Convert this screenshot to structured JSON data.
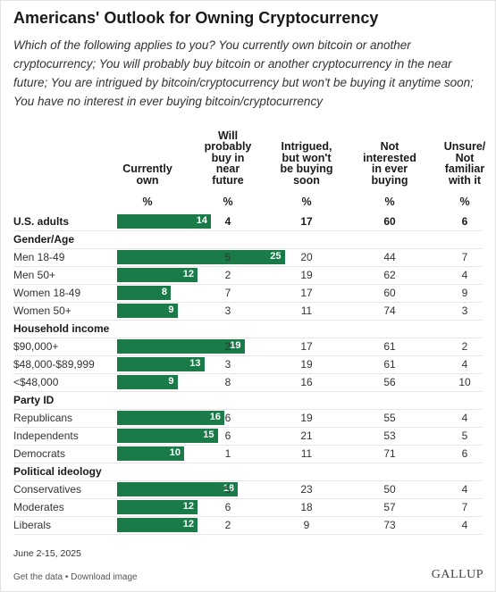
{
  "header": {
    "title": "Americans' Outlook for Owning Cryptocurrency",
    "subtitle": "Which of the following applies to you? You currently own bitcoin or another cryptocurrency; You will probably buy bitcoin or another cryptocurrency in the near future; You are intrigued by bitcoin/cryptocurrency but won't be buying it anytime soon; You have no interest in ever buying bitcoin/cryptocurrency"
  },
  "columns": [
    {
      "label": "Currently\nown",
      "unit": "%"
    },
    {
      "label": "Will\nprobably\nbuy in\nnear\nfuture",
      "unit": "%"
    },
    {
      "label": "Intrigued,\nbut won't\nbe buying\nsoon",
      "unit": "%"
    },
    {
      "label": "Not\ninterested\nin ever\nbuying",
      "unit": "%"
    },
    {
      "label": "Unsure/\nNot\nfamiliar\nwith it",
      "unit": "%"
    }
  ],
  "bar_color": "#1a7a48",
  "chart_data": {
    "type": "table",
    "rows": [
      {
        "kind": "total",
        "label": "U.S. adults",
        "values": [
          14,
          4,
          17,
          60,
          6
        ]
      },
      {
        "kind": "group",
        "label": "Gender/Age"
      },
      {
        "kind": "row",
        "label": "Men 18-49",
        "values": [
          25,
          5,
          20,
          44,
          7
        ]
      },
      {
        "kind": "row",
        "label": "Men 50+",
        "values": [
          12,
          2,
          19,
          62,
          4
        ]
      },
      {
        "kind": "row",
        "label": "Women 18-49",
        "values": [
          8,
          7,
          17,
          60,
          9
        ]
      },
      {
        "kind": "row",
        "label": "Women 50+",
        "values": [
          9,
          3,
          11,
          74,
          3
        ]
      },
      {
        "kind": "group",
        "label": "Household income"
      },
      {
        "kind": "row",
        "label": "$90,000+",
        "values": [
          19,
          2,
          17,
          61,
          2
        ]
      },
      {
        "kind": "row",
        "label": "$48,000-$89,999",
        "values": [
          13,
          3,
          19,
          61,
          4
        ]
      },
      {
        "kind": "row",
        "label": "<$48,000",
        "values": [
          9,
          8,
          16,
          56,
          10
        ]
      },
      {
        "kind": "group",
        "label": "Party ID"
      },
      {
        "kind": "row",
        "label": "Republicans",
        "values": [
          16,
          6,
          19,
          55,
          4
        ]
      },
      {
        "kind": "row",
        "label": "Independents",
        "values": [
          15,
          6,
          21,
          53,
          5
        ]
      },
      {
        "kind": "row",
        "label": "Democrats",
        "values": [
          10,
          1,
          11,
          71,
          6
        ]
      },
      {
        "kind": "group",
        "label": "Political ideology"
      },
      {
        "kind": "row",
        "label": "Conservatives",
        "values": [
          18,
          5,
          23,
          50,
          4
        ]
      },
      {
        "kind": "row",
        "label": "Moderates",
        "values": [
          12,
          6,
          18,
          57,
          7
        ]
      },
      {
        "kind": "row",
        "label": "Liberals",
        "values": [
          12,
          2,
          9,
          73,
          4
        ]
      }
    ]
  },
  "footer": {
    "date": "June 2-15, 2025",
    "links": "Get the data • Download image",
    "logo": "GALLUP"
  }
}
